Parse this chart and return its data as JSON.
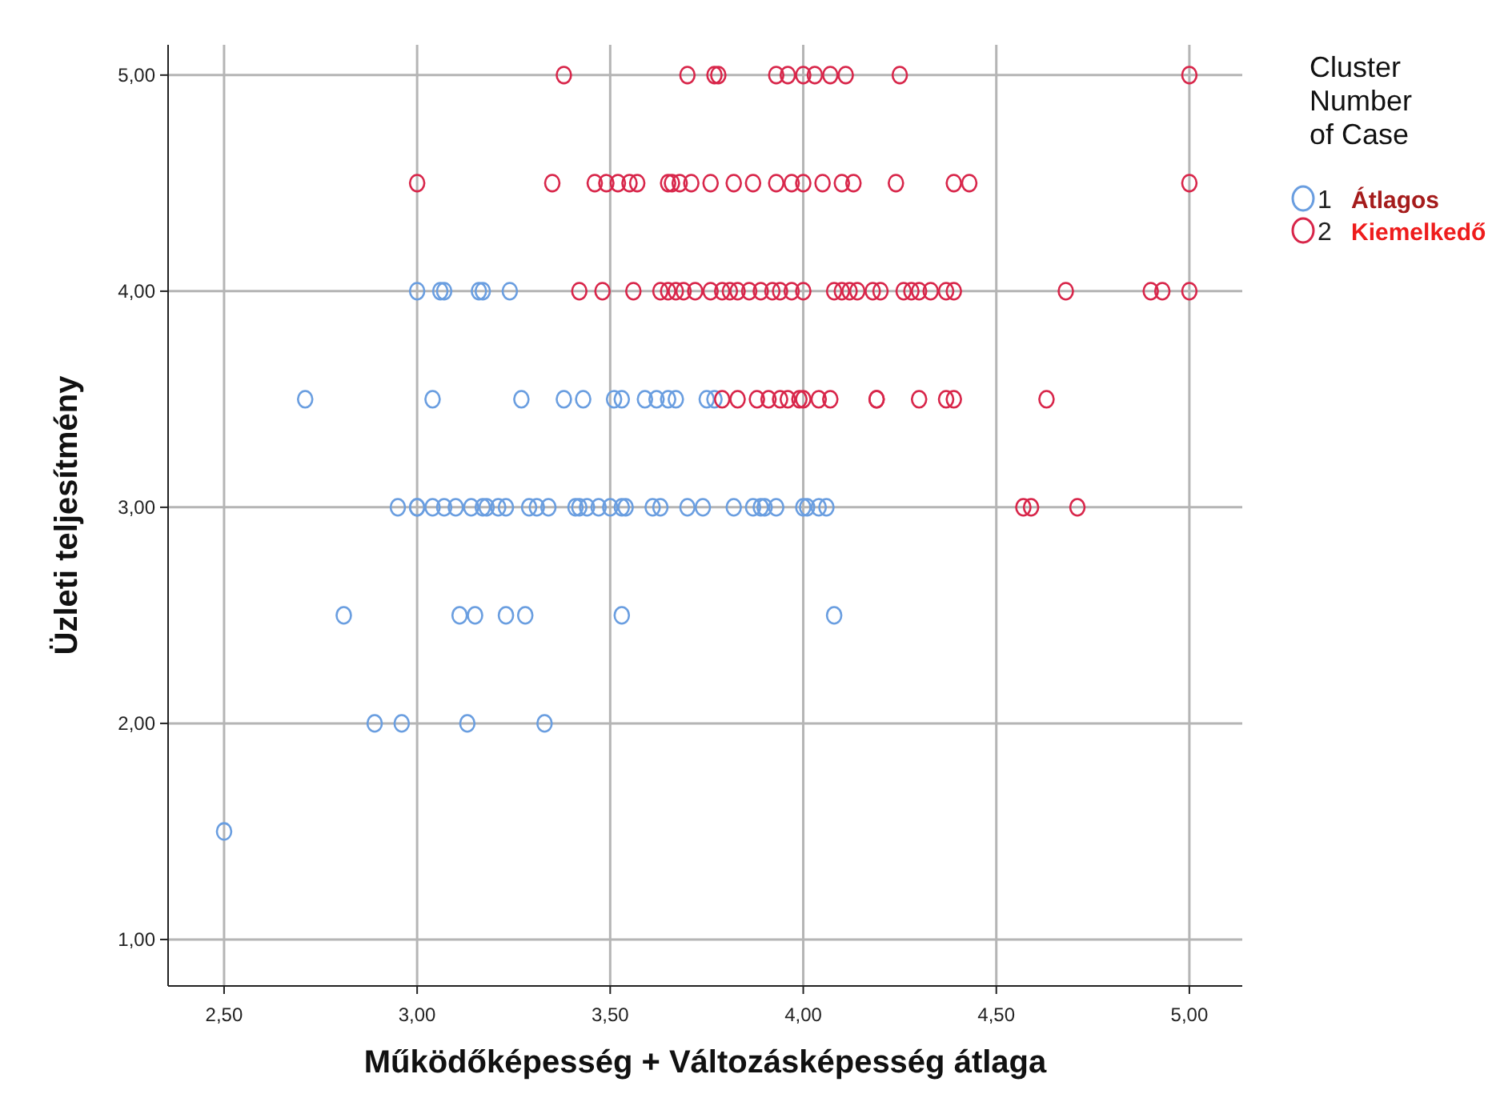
{
  "chart_data": {
    "type": "scatter",
    "xlabel": "Működőképesség + Változásképesség átlaga",
    "ylabel": "Üzleti teljesítmény",
    "legend_title": "Cluster Number of Case",
    "legend": "right",
    "marker": "circle",
    "grid": true,
    "xlim": [
      2.355,
      5.137
    ],
    "ylim": [
      0.785,
      5.14
    ],
    "xticks": [
      {
        "value": 2.5,
        "label": "2,50"
      },
      {
        "value": 3,
        "label": "3,00"
      },
      {
        "value": 3.5,
        "label": "3,50"
      },
      {
        "value": 4,
        "label": "4,00"
      },
      {
        "value": 4.5,
        "label": "4,50"
      },
      {
        "value": 5,
        "label": "5,00"
      }
    ],
    "yticks": [
      {
        "value": 1,
        "label": "1,00"
      },
      {
        "value": 2,
        "label": "2,00"
      },
      {
        "value": 3,
        "label": "3,00"
      },
      {
        "value": 4,
        "label": "4,00"
      },
      {
        "value": 5,
        "label": "5,00"
      }
    ],
    "annotations": [
      "Átlagos",
      "Kiemelkedő"
    ],
    "series": [
      {
        "name": "1",
        "color": "#6a9ee0",
        "x": [
          3.0,
          3.06,
          3.07,
          3.16,
          3.17,
          3.24,
          2.71,
          3.04,
          3.27,
          3.38,
          3.43,
          3.51,
          3.53,
          3.59,
          3.62,
          3.65,
          3.67,
          3.75,
          3.77,
          2.95,
          3.0,
          3.0,
          3.04,
          3.07,
          3.1,
          3.14,
          3.17,
          3.18,
          3.21,
          3.23,
          3.29,
          3.31,
          3.34,
          3.41,
          3.42,
          3.44,
          3.47,
          3.5,
          3.53,
          3.54,
          3.61,
          3.63,
          3.7,
          3.74,
          3.82,
          3.87,
          3.89,
          3.9,
          3.93,
          4.0,
          4.01,
          4.04,
          4.06,
          2.81,
          3.11,
          3.15,
          3.23,
          3.28,
          3.53,
          4.08,
          2.89,
          2.96,
          3.13,
          3.33,
          2.5
        ],
        "values": [
          4,
          4,
          4,
          4,
          4,
          4,
          3.5,
          3.5,
          3.5,
          3.5,
          3.5,
          3.5,
          3.5,
          3.5,
          3.5,
          3.5,
          3.5,
          3.5,
          3.5,
          3,
          3,
          3,
          3,
          3,
          3,
          3,
          3,
          3,
          3,
          3,
          3,
          3,
          3,
          3,
          3,
          3,
          3,
          3,
          3,
          3,
          3,
          3,
          3,
          3,
          3,
          3,
          3,
          3,
          3,
          3,
          3,
          3,
          3,
          2.5,
          2.5,
          2.5,
          2.5,
          2.5,
          2.5,
          2.5,
          2,
          2,
          2,
          2,
          1.5
        ]
      },
      {
        "name": "2",
        "color": "#d8264a",
        "x": [
          3.38,
          3.7,
          3.77,
          3.78,
          3.93,
          3.96,
          4.0,
          4.03,
          4.07,
          4.11,
          4.25,
          5.0,
          3.0,
          3.35,
          3.46,
          3.49,
          3.52,
          3.55,
          3.57,
          3.65,
          3.66,
          3.68,
          3.71,
          3.76,
          3.82,
          3.87,
          3.93,
          3.97,
          4.0,
          4.05,
          4.1,
          4.13,
          4.24,
          4.39,
          4.43,
          5.0,
          3.42,
          3.48,
          3.56,
          3.63,
          3.65,
          3.67,
          3.69,
          3.72,
          3.76,
          3.79,
          3.81,
          3.83,
          3.86,
          3.89,
          3.92,
          3.94,
          3.97,
          4.0,
          4.08,
          4.1,
          4.12,
          4.14,
          4.18,
          4.2,
          4.26,
          4.28,
          4.3,
          4.33,
          4.37,
          4.39,
          4.68,
          4.9,
          4.93,
          5.0,
          3.79,
          3.83,
          3.88,
          3.91,
          3.94,
          3.96,
          3.99,
          4.0,
          4.04,
          4.07,
          4.19,
          4.19,
          4.3,
          4.37,
          4.39,
          4.63,
          4.57,
          4.59,
          4.71
        ],
        "values": [
          5,
          5,
          5,
          5,
          5,
          5,
          5,
          5,
          5,
          5,
          5,
          5,
          4.5,
          4.5,
          4.5,
          4.5,
          4.5,
          4.5,
          4.5,
          4.5,
          4.5,
          4.5,
          4.5,
          4.5,
          4.5,
          4.5,
          4.5,
          4.5,
          4.5,
          4.5,
          4.5,
          4.5,
          4.5,
          4.5,
          4.5,
          4.5,
          4,
          4,
          4,
          4,
          4,
          4,
          4,
          4,
          4,
          4,
          4,
          4,
          4,
          4,
          4,
          4,
          4,
          4,
          4,
          4,
          4,
          4,
          4,
          4,
          4,
          4,
          4,
          4,
          4,
          4,
          4,
          4,
          4,
          4,
          3.5,
          3.5,
          3.5,
          3.5,
          3.5,
          3.5,
          3.5,
          3.5,
          3.5,
          3.5,
          3.5,
          3.5,
          3.5,
          3.5,
          3.5,
          3.5,
          3,
          3,
          3
        ]
      }
    ]
  }
}
